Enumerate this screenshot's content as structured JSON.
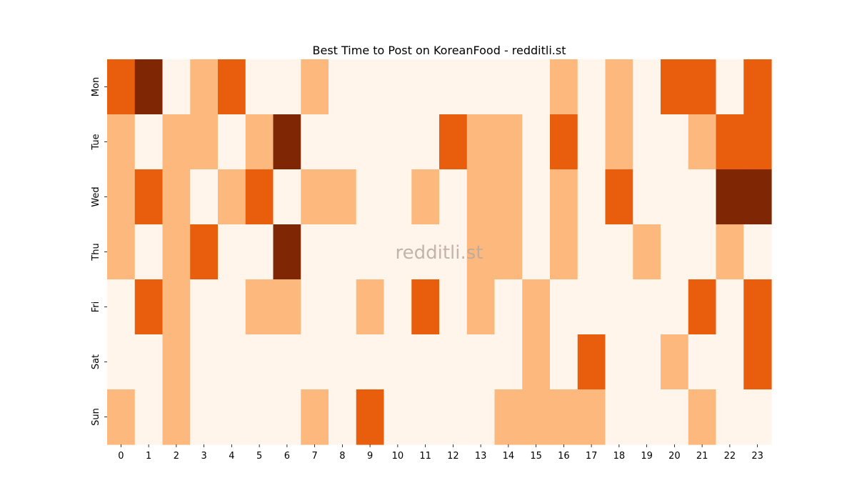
{
  "chart_data": {
    "type": "heatmap",
    "title": "Best Time to Post on KoreanFood - redditli.st",
    "watermark": "redditli.st",
    "xlabel": "",
    "ylabel": "",
    "x_categories": [
      "0",
      "1",
      "2",
      "3",
      "4",
      "5",
      "6",
      "7",
      "8",
      "9",
      "10",
      "11",
      "12",
      "13",
      "14",
      "15",
      "16",
      "17",
      "18",
      "19",
      "20",
      "21",
      "22",
      "23"
    ],
    "y_categories": [
      "Mon",
      "Tue",
      "Wed",
      "Thu",
      "Fri",
      "Sat",
      "Sun"
    ],
    "colorscale": "Oranges",
    "level_colors": [
      "#fff5eb",
      "#fdb97d",
      "#e95e0d",
      "#7f2704"
    ],
    "levels": [
      [
        2,
        3,
        0,
        1,
        2,
        0,
        0,
        1,
        0,
        0,
        0,
        0,
        0,
        0,
        0,
        0,
        1,
        0,
        1,
        0,
        2,
        2,
        0,
        2
      ],
      [
        1,
        0,
        1,
        1,
        0,
        1,
        3,
        0,
        0,
        0,
        0,
        0,
        2,
        1,
        1,
        0,
        2,
        0,
        1,
        0,
        0,
        1,
        2,
        2
      ],
      [
        1,
        2,
        1,
        0,
        1,
        2,
        0,
        1,
        1,
        0,
        0,
        1,
        0,
        1,
        1,
        0,
        1,
        0,
        2,
        0,
        0,
        0,
        3,
        3
      ],
      [
        1,
        0,
        1,
        2,
        0,
        0,
        3,
        0,
        0,
        0,
        0,
        0,
        0,
        1,
        1,
        0,
        1,
        0,
        0,
        1,
        0,
        0,
        1,
        0
      ],
      [
        0,
        2,
        1,
        0,
        0,
        1,
        1,
        0,
        0,
        1,
        0,
        2,
        0,
        1,
        0,
        1,
        0,
        0,
        0,
        0,
        0,
        2,
        0,
        2
      ],
      [
        0,
        0,
        1,
        0,
        0,
        0,
        0,
        0,
        0,
        0,
        0,
        0,
        0,
        0,
        0,
        1,
        0,
        2,
        0,
        0,
        1,
        0,
        0,
        2
      ],
      [
        1,
        0,
        1,
        0,
        0,
        0,
        0,
        1,
        0,
        2,
        0,
        0,
        0,
        0,
        1,
        1,
        1,
        1,
        0,
        0,
        0,
        1,
        0,
        0
      ]
    ],
    "grid": false,
    "legend": "none"
  }
}
